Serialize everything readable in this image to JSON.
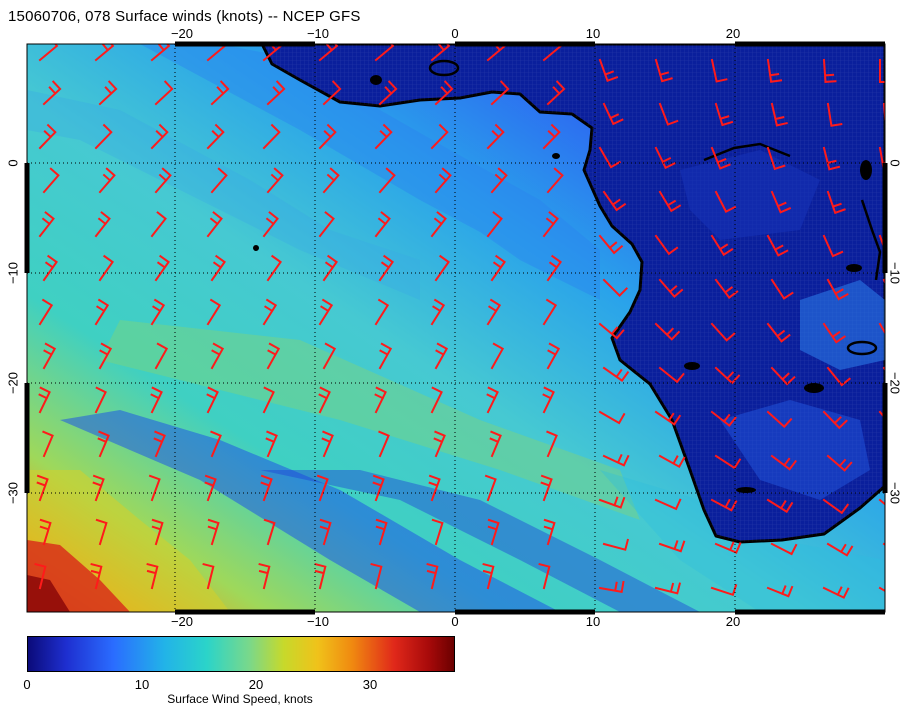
{
  "title": "15060706, 078 Surface winds (knots) -- NCEP GFS",
  "map": {
    "lon_range": [
      -30,
      30
    ],
    "lat_range": [
      -40,
      10
    ],
    "grid": "dotted",
    "land_color": "#0a1f9c",
    "barb_color": "#ff1a1a",
    "coast_color": "#000000"
  },
  "ticks": {
    "top": [
      "−20",
      "−10",
      "0",
      "10",
      "20"
    ],
    "bottom": [
      "−20",
      "−10",
      "0",
      "10",
      "20"
    ],
    "left": [
      "0",
      "−10",
      "−20",
      "−30"
    ],
    "right": [
      "0",
      "−10",
      "−20",
      "−30"
    ]
  },
  "colorbar": {
    "label": "Surface Wind Speed, knots",
    "ticks": [
      "0",
      "10",
      "20",
      "30"
    ],
    "range": [
      0,
      37
    ],
    "colors": [
      "#0b0b7a",
      "#1e2fd0",
      "#2a6cff",
      "#22b3e8",
      "#2bd4c9",
      "#7ad88a",
      "#c7d92b",
      "#f0c21a",
      "#f08a10",
      "#e0281a",
      "#a80a0a",
      "#6b0000"
    ]
  }
}
